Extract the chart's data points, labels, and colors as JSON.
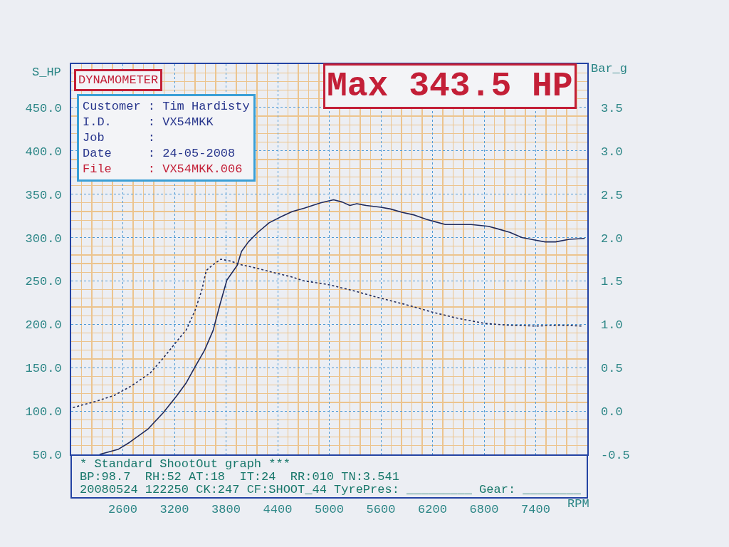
{
  "chart_data": {
    "type": "line",
    "title": "DYNAMOMETER",
    "xlabel": "RPM",
    "ylabel": "S_HP",
    "y2label": "Bar_g",
    "annotations": [
      "Max 343.5 HP",
      "Customer : Tim Hardisty",
      "I.D.     : VX54MKK",
      "Job      :",
      "Date     : 24-05-2008",
      "File     : VX54MKK.006",
      "* Standard ShootOut graph ***",
      "BP:98.7  RH:52 AT:18  IT:24  RR:010 TN:3.541",
      "20080524 122250 CK:247 CF:SHOOT_44 TyrePres: _________ Gear: ________"
    ],
    "series": [
      {
        "color": "#1f2a5c",
        "line_style": "solid",
        "x": [
          2330,
          2550,
          2680,
          2890,
          3070,
          3230,
          3340,
          3440,
          3550,
          3650,
          3730,
          3810,
          3930,
          3980,
          4060,
          4170,
          4300,
          4440,
          4570,
          4710,
          4900,
          5050,
          5150,
          5240,
          5320,
          5430,
          5600,
          5710,
          5850,
          5990,
          6130,
          6240,
          6350,
          6650,
          6850,
          6960,
          7100,
          7240,
          7400,
          7510,
          7630,
          7790,
          7970
        ],
        "values": [
          50,
          56,
          64,
          79,
          98,
          118,
          133,
          151,
          170,
          193,
          223,
          251,
          268,
          284,
          295,
          306,
          317,
          324,
          330,
          334,
          340,
          343.5,
          341,
          337,
          339,
          337,
          335,
          333,
          329,
          326,
          321,
          318,
          315,
          315,
          313,
          310,
          306,
          300,
          297,
          295,
          295,
          298,
          299
        ]
      },
      {
        "color": "#1f2a5c",
        "line_style": "dotted",
        "axis": "y2",
        "x": [
          2020,
          2280,
          2500,
          2700,
          2920,
          3070,
          3200,
          3340,
          3440,
          3520,
          3570,
          3640,
          3740,
          3850,
          3960,
          4100,
          4340,
          4550,
          4710,
          4980,
          5270,
          5600,
          5880,
          6200,
          6490,
          6810,
          7080,
          7410,
          7670,
          7940
        ],
        "values": [
          0.04,
          0.11,
          0.18,
          0.29,
          0.44,
          0.61,
          0.77,
          0.94,
          1.16,
          1.4,
          1.62,
          1.68,
          1.75,
          1.73,
          1.69,
          1.66,
          1.6,
          1.55,
          1.5,
          1.46,
          1.39,
          1.3,
          1.23,
          1.14,
          1.07,
          1.01,
          0.99,
          0.98,
          0.99,
          0.98
        ]
      }
    ],
    "xlim": [
      2000,
      8000
    ],
    "xticks": [
      2600,
      3200,
      3800,
      4400,
      5000,
      5600,
      6200,
      6800,
      7400
    ],
    "ylim": [
      50,
      500
    ],
    "yticks": [
      {
        "value": 50,
        "label": "50.0"
      },
      {
        "value": 100,
        "label": "100.0"
      },
      {
        "value": 150,
        "label": "150.0"
      },
      {
        "value": 200,
        "label": "200.0"
      },
      {
        "value": 250,
        "label": "250.0"
      },
      {
        "value": 300,
        "label": "300.0"
      },
      {
        "value": 350,
        "label": "350.0"
      },
      {
        "value": 400,
        "label": "400.0"
      },
      {
        "value": 450,
        "label": "450.0"
      }
    ],
    "y2lim": [
      -0.5,
      4
    ],
    "y2ticks": [
      -0.5,
      {
        "value": 0,
        "label": "0.0"
      },
      0.5,
      {
        "value": 1,
        "label": "1.0"
      },
      1.5,
      {
        "value": 2,
        "label": "2.0"
      },
      2.5,
      {
        "value": 3,
        "label": "3.0"
      },
      3.5
    ],
    "grid": true
  }
}
